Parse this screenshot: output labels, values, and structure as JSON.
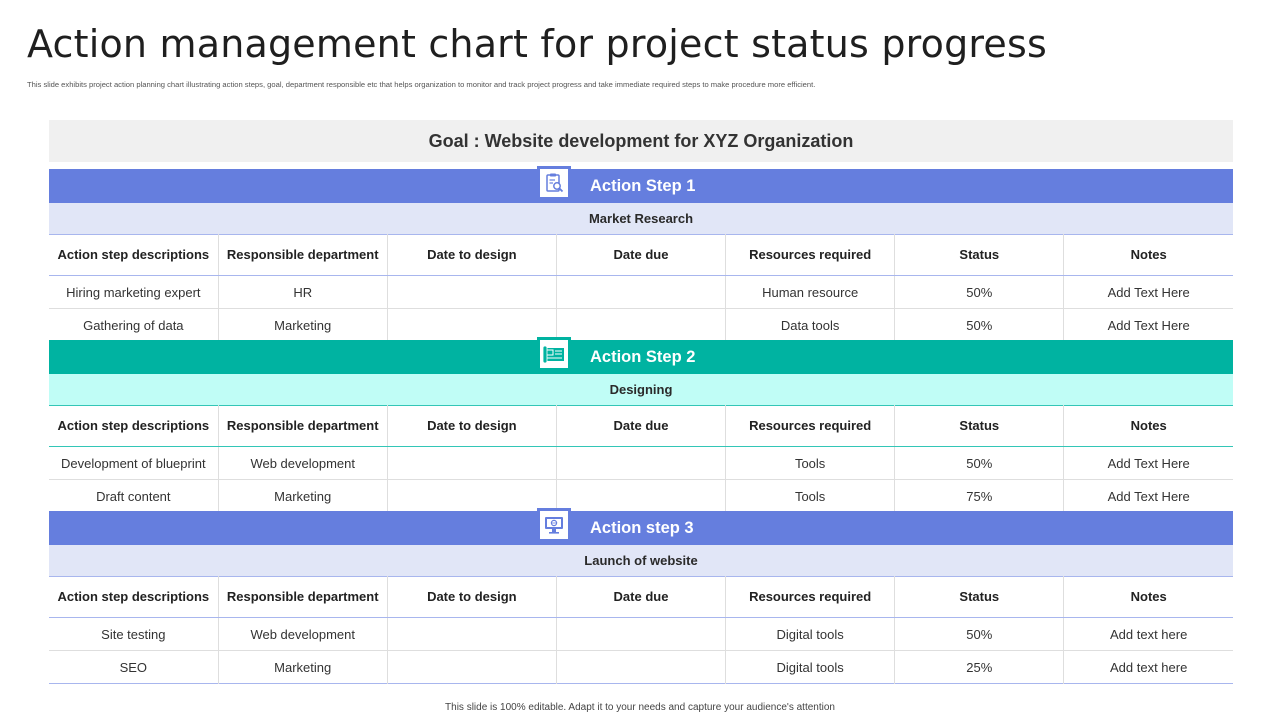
{
  "title": "Action management chart for project status progress",
  "subtitle": "This slide exhibits project action planning chart illustrating action steps, goal, department responsible etc that helps organization  to monitor and track project progress and take immediate required  steps to make procedure more efficient.",
  "goal": "Goal : Website development for XYZ Organization",
  "colors": {
    "blue": "#657ede",
    "blue_light": "#e1e6f7",
    "teal": "#00b3a1",
    "teal_light": "#c0fdf6"
  },
  "headers": [
    "Action step descriptions",
    "Responsible department",
    "Date to design",
    "Date due",
    "Resources required",
    "Status",
    "Notes"
  ],
  "steps": [
    {
      "title": "Action Step 1",
      "subtitle": "Market Research",
      "icon": "clipboard-search-icon",
      "rows": [
        [
          "Hiring marketing expert",
          "HR",
          "",
          "",
          "Human resource",
          "50%",
          "Add Text Here"
        ],
        [
          "Gathering  of data",
          "Marketing",
          "",
          "",
          "Data tools",
          "50%",
          "Add Text Here"
        ]
      ]
    },
    {
      "title": "Action Step 2",
      "subtitle": "Designing",
      "icon": "blueprint-icon",
      "rows": [
        [
          "Development  of blueprint",
          "Web development",
          "",
          "",
          "Tools",
          "50%",
          "Add Text Here"
        ],
        [
          "Draft content",
          "Marketing",
          "",
          "",
          "Tools",
          "75%",
          "Add Text Here"
        ]
      ]
    },
    {
      "title": "Action step 3",
      "subtitle": "Launch of website",
      "icon": "monitor-icon",
      "rows": [
        [
          "Site testing",
          "Web development",
          "",
          "",
          "Digital tools",
          "50%",
          "Add text here"
        ],
        [
          "SEO",
          "Marketing",
          "",
          "",
          "Digital tools",
          "25%",
          "Add text here"
        ]
      ]
    }
  ],
  "footer": "This slide is 100% editable. Adapt it to your needs and capture your audience's attention"
}
